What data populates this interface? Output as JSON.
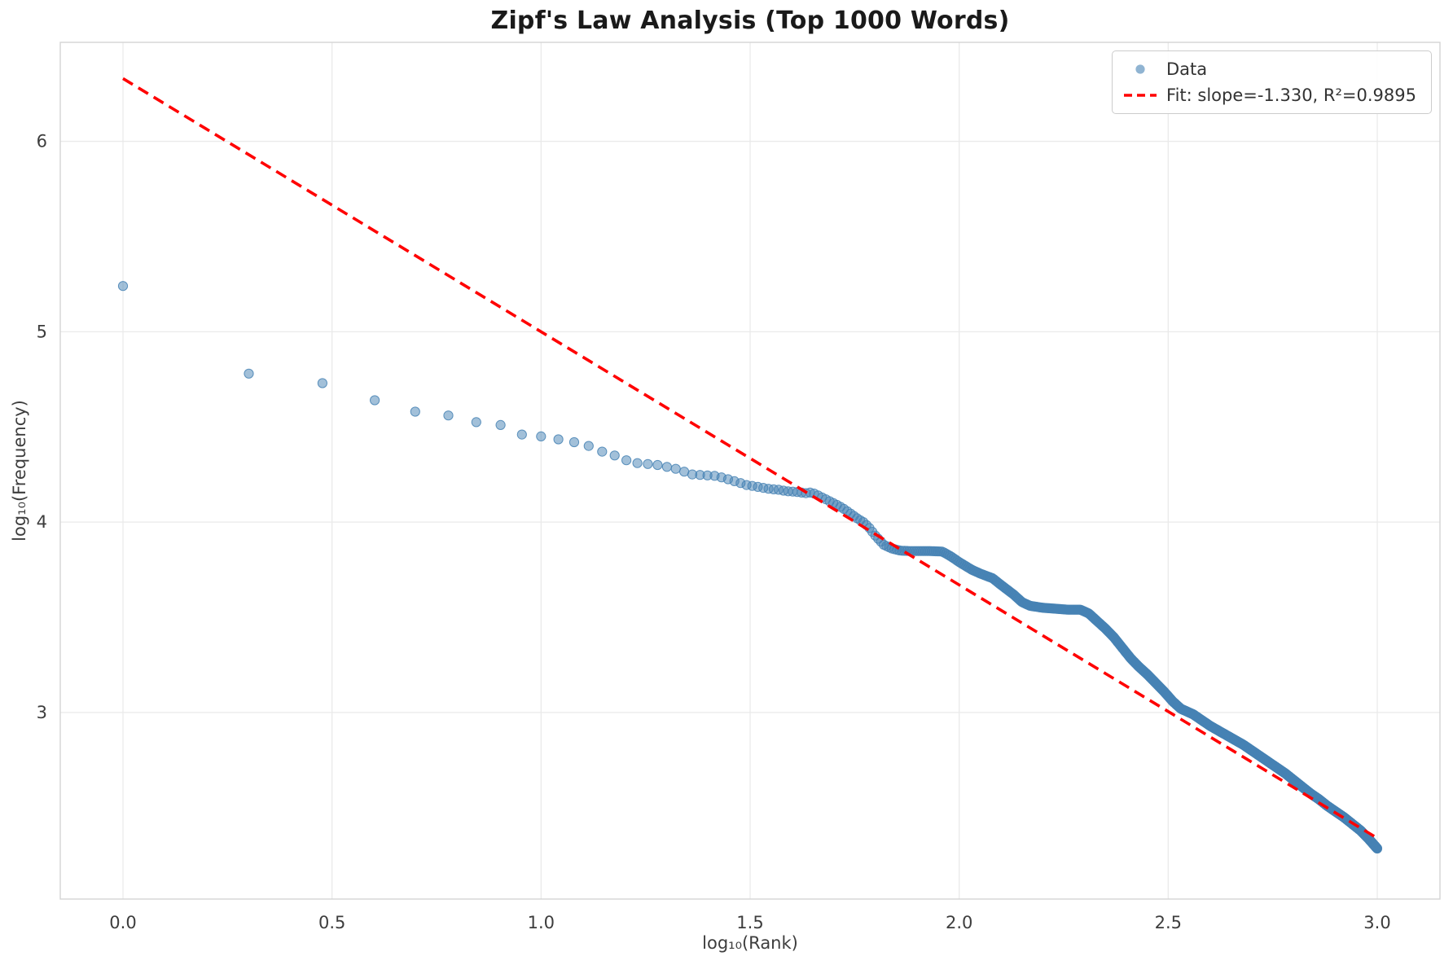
{
  "figure": {
    "background": "#ffffff"
  },
  "chart_data": {
    "type": "scatter",
    "title": "Zipf's Law Analysis (Top 1000 Words)",
    "xlabel": "log₁₀(Rank)",
    "ylabel": "log₁₀(Frequency)",
    "xlim": [
      -0.15,
      3.15
    ],
    "ylim": [
      2.02,
      6.52
    ],
    "xticks": [
      0.0,
      0.5,
      1.0,
      1.5,
      2.0,
      2.5,
      3.0
    ],
    "xtick_labels": [
      "0.0",
      "0.5",
      "1.0",
      "1.5",
      "2.0",
      "2.5",
      "3.0"
    ],
    "yticks": [
      3,
      4,
      5,
      6
    ],
    "ytick_labels": [
      "3",
      "4",
      "5",
      "6"
    ],
    "grid": true,
    "legend_position": "upper right",
    "series": [
      {
        "name": "Data",
        "type": "scatter",
        "color": "#4682b4",
        "alpha": 0.5,
        "n_points": 1000,
        "x_definition": "log10(rank), rank = 1..1000",
        "curve_anchors": [
          [
            0.0,
            5.24
          ],
          [
            0.301,
            4.78
          ],
          [
            0.477,
            4.73
          ],
          [
            0.602,
            4.64
          ],
          [
            0.699,
            4.58
          ],
          [
            0.778,
            4.56
          ],
          [
            0.845,
            4.525
          ],
          [
            0.903,
            4.51
          ],
          [
            0.954,
            4.46
          ],
          [
            1.0,
            4.45
          ],
          [
            1.041,
            4.435
          ],
          [
            1.079,
            4.42
          ],
          [
            1.114,
            4.4
          ],
          [
            1.146,
            4.37
          ],
          [
            1.176,
            4.35
          ],
          [
            1.204,
            4.325
          ],
          [
            1.23,
            4.31
          ],
          [
            1.255,
            4.305
          ],
          [
            1.279,
            4.3
          ],
          [
            1.301,
            4.29
          ],
          [
            1.322,
            4.28
          ],
          [
            1.342,
            4.265
          ],
          [
            1.362,
            4.25
          ],
          [
            1.38,
            4.248
          ],
          [
            1.398,
            4.245
          ],
          [
            1.415,
            4.243
          ],
          [
            1.431,
            4.235
          ],
          [
            1.447,
            4.225
          ],
          [
            1.462,
            4.215
          ],
          [
            1.477,
            4.205
          ],
          [
            1.491,
            4.195
          ],
          [
            1.505,
            4.19
          ],
          [
            1.518,
            4.185
          ],
          [
            1.531,
            4.18
          ],
          [
            1.544,
            4.175
          ],
          [
            1.556,
            4.172
          ],
          [
            1.568,
            4.17
          ],
          [
            1.58,
            4.165
          ],
          [
            1.591,
            4.162
          ],
          [
            1.602,
            4.16
          ],
          [
            1.613,
            4.158
          ],
          [
            1.623,
            4.155
          ],
          [
            1.633,
            4.152
          ],
          [
            1.643,
            4.155
          ],
          [
            1.653,
            4.15
          ],
          [
            1.663,
            4.14
          ],
          [
            1.672,
            4.13
          ],
          [
            1.69,
            4.11
          ],
          [
            1.708,
            4.09
          ],
          [
            1.724,
            4.07
          ],
          [
            1.74,
            4.045
          ],
          [
            1.756,
            4.02
          ],
          [
            1.771,
            4.0
          ],
          [
            1.785,
            3.97
          ],
          [
            1.799,
            3.93
          ],
          [
            1.82,
            3.88
          ],
          [
            1.84,
            3.86
          ],
          [
            1.86,
            3.85
          ],
          [
            1.88,
            3.848
          ],
          [
            1.9,
            3.848
          ],
          [
            1.93,
            3.848
          ],
          [
            1.96,
            3.845
          ],
          [
            1.98,
            3.82
          ],
          [
            2.0,
            3.79
          ],
          [
            2.03,
            3.75
          ],
          [
            2.05,
            3.73
          ],
          [
            2.08,
            3.705
          ],
          [
            2.1,
            3.67
          ],
          [
            2.13,
            3.62
          ],
          [
            2.15,
            3.58
          ],
          [
            2.17,
            3.56
          ],
          [
            2.2,
            3.55
          ],
          [
            2.23,
            3.545
          ],
          [
            2.26,
            3.54
          ],
          [
            2.29,
            3.54
          ],
          [
            2.31,
            3.52
          ],
          [
            2.33,
            3.48
          ],
          [
            2.35,
            3.44
          ],
          [
            2.37,
            3.395
          ],
          [
            2.39,
            3.34
          ],
          [
            2.41,
            3.285
          ],
          [
            2.43,
            3.24
          ],
          [
            2.45,
            3.2
          ],
          [
            2.47,
            3.155
          ],
          [
            2.49,
            3.11
          ],
          [
            2.51,
            3.06
          ],
          [
            2.53,
            3.02
          ],
          [
            2.56,
            2.99
          ],
          [
            2.58,
            2.96
          ],
          [
            2.6,
            2.93
          ],
          [
            2.62,
            2.905
          ],
          [
            2.64,
            2.88
          ],
          [
            2.66,
            2.855
          ],
          [
            2.68,
            2.83
          ],
          [
            2.7,
            2.8
          ],
          [
            2.72,
            2.77
          ],
          [
            2.74,
            2.74
          ],
          [
            2.76,
            2.71
          ],
          [
            2.78,
            2.68
          ],
          [
            2.8,
            2.645
          ],
          [
            2.82,
            2.61
          ],
          [
            2.84,
            2.575
          ],
          [
            2.86,
            2.545
          ],
          [
            2.88,
            2.51
          ],
          [
            2.9,
            2.48
          ],
          [
            2.92,
            2.45
          ],
          [
            2.94,
            2.415
          ],
          [
            2.96,
            2.38
          ],
          [
            2.98,
            2.335
          ],
          [
            3.0,
            2.285
          ]
        ]
      },
      {
        "name": "Fit: slope=-1.330, R²=0.9895",
        "type": "line",
        "color": "#ff0000",
        "dashed": true,
        "slope": -1.33,
        "intercept": 6.33,
        "r_squared": 0.9895,
        "x_range": [
          0.0,
          3.0
        ]
      }
    ],
    "legend": [
      "Data",
      "Fit: slope=-1.330, R²=0.9895"
    ],
    "colors": {
      "grid": "#eaeaea",
      "spine": "#d4d4d4",
      "tick_label": "#3d3d3d",
      "title": "#1a1a1a"
    }
  }
}
